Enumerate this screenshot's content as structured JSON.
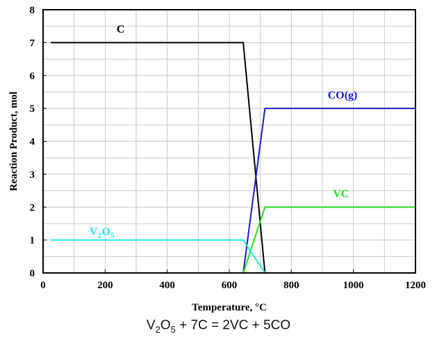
{
  "chart_data": {
    "type": "line",
    "title": "",
    "xlabel": "Temperature, °C",
    "ylabel": "Reaction Product, mol",
    "xlim": [
      0,
      1200
    ],
    "ylim": [
      0,
      8
    ],
    "xticks": [
      0,
      200,
      400,
      600,
      800,
      1000,
      1200
    ],
    "yticks": [
      0,
      1,
      2,
      3,
      4,
      5,
      6,
      7,
      8
    ],
    "grid": true,
    "legend": "none",
    "series": [
      {
        "name": "C",
        "color": "#000000",
        "x": [
          25,
          645,
          715,
          1200
        ],
        "y": [
          7,
          7,
          0,
          0
        ]
      },
      {
        "name": "CO(g)",
        "color": "#1a1acc",
        "x": [
          25,
          645,
          715,
          1200
        ],
        "y": [
          0,
          0,
          5,
          5
        ]
      },
      {
        "name": "VC",
        "color": "#22dd22",
        "x": [
          25,
          645,
          715,
          1200
        ],
        "y": [
          0,
          0,
          2,
          2
        ]
      },
      {
        "name": "V2O5",
        "color": "#22e5e5",
        "x": [
          25,
          645,
          715,
          1200
        ],
        "y": [
          1,
          1,
          0,
          0
        ]
      }
    ],
    "labels": [
      {
        "series": "C",
        "text": "C",
        "color": "#000000",
        "x": 250,
        "y": 7.3
      },
      {
        "series": "CO(g)",
        "text": "CO(g)",
        "color": "#1a1acc",
        "x": 965,
        "y": 5.3
      },
      {
        "series": "VC",
        "text": "VC",
        "color": "#22dd22",
        "x": 960,
        "y": 2.3
      },
      {
        "series": "V2O5",
        "text": "V",
        "sub1": "2",
        "mid": "O",
        "sub2": "5",
        "color": "#22e5e5",
        "x": 190,
        "y": 1.15
      }
    ]
  },
  "caption": {
    "v": "V",
    "sub1": "2",
    "o": "O",
    "sub2": "5",
    "rest": " + 7C = 2VC + 5CO"
  }
}
